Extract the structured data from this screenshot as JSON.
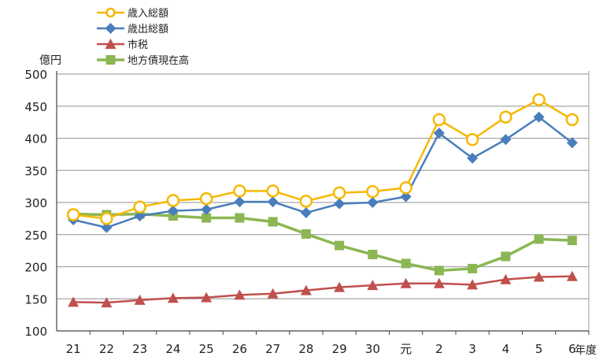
{
  "chart_data": {
    "type": "line",
    "title": "",
    "ylabel": "億円",
    "xlabel": "年度",
    "ylim": [
      100,
      500
    ],
    "yticks": [
      100,
      150,
      200,
      250,
      300,
      350,
      400,
      450,
      500
    ],
    "grid": true,
    "legend_position": "top-left",
    "categories": [
      "21",
      "22",
      "23",
      "24",
      "25",
      "26",
      "27",
      "28",
      "29",
      "30",
      "元",
      "2",
      "3",
      "4",
      "5",
      "6"
    ],
    "series": [
      {
        "name": "歳入総額",
        "color": "#F5B800",
        "marker": "circle",
        "values": [
          281,
          275,
          293,
          303,
          306,
          318,
          318,
          302,
          315,
          317,
          323,
          429,
          398,
          433,
          460,
          429
        ]
      },
      {
        "name": "歳出総額",
        "color": "#4A7EBB",
        "marker": "diamond",
        "values": [
          273,
          261,
          279,
          287,
          289,
          301,
          301,
          284,
          298,
          300,
          309,
          408,
          369,
          398,
          433,
          393
        ]
      },
      {
        "name": "市税",
        "color": "#C0504D",
        "marker": "triangle",
        "values": [
          145,
          144,
          148,
          151,
          152,
          156,
          158,
          163,
          168,
          171,
          174,
          174,
          172,
          180,
          184,
          185
        ]
      },
      {
        "name": "地方債現在高",
        "color": "#8CB653",
        "marker": "square",
        "values": [
          282,
          281,
          282,
          279,
          276,
          276,
          270,
          251,
          233,
          219,
          205,
          194,
          197,
          216,
          243,
          241
        ]
      }
    ]
  }
}
